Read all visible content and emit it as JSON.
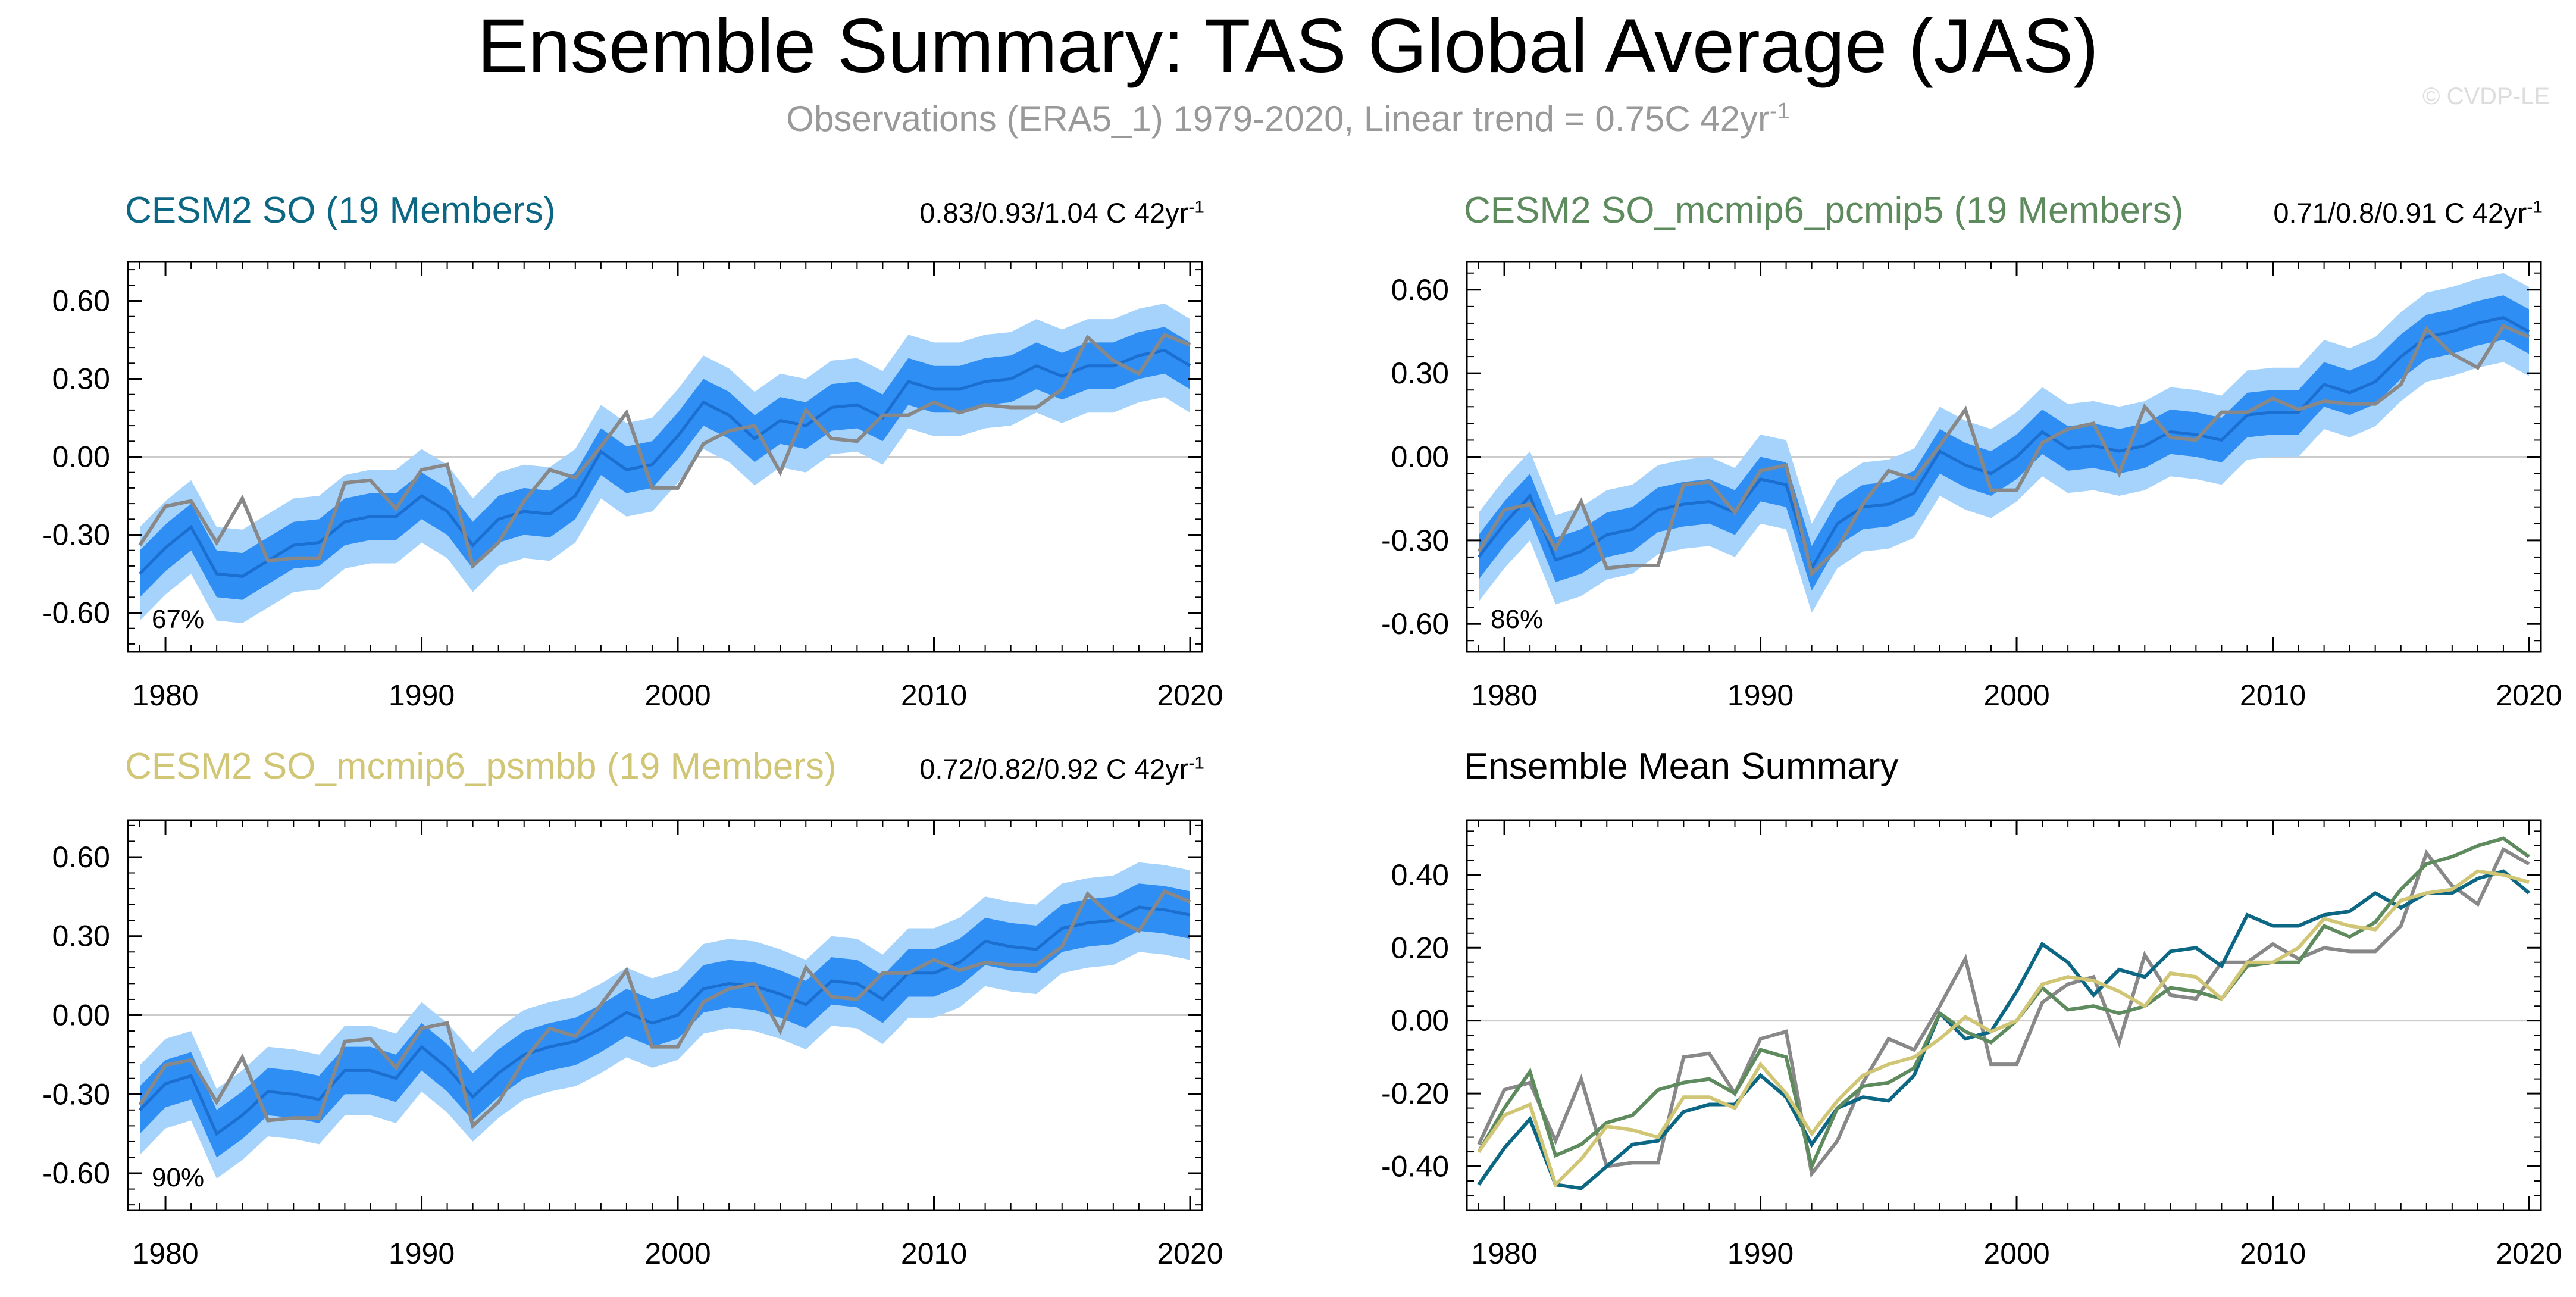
{
  "figure": {
    "title": "Ensemble Summary: TAS Global Average (JAS)",
    "subtitle_main": "Observations (ERA5_1) 1979-2020, Linear trend = 0.75C 42yr",
    "subtitle_sup": "-1",
    "watermark": "© CVDP-LE",
    "colors": {
      "outer_band": "#a6d3fb",
      "inner_band": "#2f8ef4",
      "mean_line": "#1b6fd1",
      "obs_line": "#888888",
      "zero_line": "#cccccc",
      "so": "#0b6783",
      "pcmip5": "#5e8b5e",
      "psmbb": "#d0c675"
    }
  },
  "panels": [
    {
      "title": "CESM2 SO (19 Members)",
      "trend": "0.83/0.93/1.04 C 42yr",
      "trend_sup": "-1",
      "percent": "67%",
      "title_color": "#0b6783"
    },
    {
      "title": "CESM2 SO_mcmip6_pcmip5 (19 Members)",
      "trend": "0.71/0.8/0.91 C 42yr",
      "trend_sup": "-1",
      "percent": "86%",
      "title_color": "#5e8b5e"
    },
    {
      "title": "CESM2 SO_mcmip6_psmbb (19 Members)",
      "trend": "0.72/0.82/0.92 C 42yr",
      "trend_sup": "-1",
      "percent": "90%",
      "title_color": "#d0c675"
    },
    {
      "title": "Ensemble Mean Summary",
      "title_color": "#000000"
    }
  ],
  "chart_data": [
    {
      "type": "area",
      "title": "CESM2 SO (19 Members)",
      "x": [
        1979,
        1980,
        1981,
        1982,
        1983,
        1984,
        1985,
        1986,
        1987,
        1988,
        1989,
        1990,
        1991,
        1992,
        1993,
        1994,
        1995,
        1996,
        1997,
        1998,
        1999,
        2000,
        2001,
        2002,
        2003,
        2004,
        2005,
        2006,
        2007,
        2008,
        2009,
        2010,
        2011,
        2012,
        2013,
        2014,
        2015,
        2016,
        2017,
        2018,
        2019,
        2020
      ],
      "xticks": [
        "1980",
        "1990",
        "2000",
        "2010",
        "2020"
      ],
      "ylim": [
        -0.75,
        0.75
      ],
      "yticks": [
        "0.60",
        "0.30",
        "0.00",
        "-0.30",
        "-0.60"
      ],
      "series": [
        {
          "name": "obs",
          "values": [
            -0.34,
            -0.19,
            -0.17,
            -0.33,
            -0.16,
            -0.4,
            -0.39,
            -0.39,
            -0.1,
            -0.09,
            -0.2,
            -0.05,
            -0.03,
            -0.42,
            -0.33,
            -0.17,
            -0.05,
            -0.08,
            0.04,
            0.17,
            -0.12,
            -0.12,
            0.05,
            0.1,
            0.12,
            -0.06,
            0.18,
            0.07,
            0.06,
            0.16,
            0.16,
            0.21,
            0.17,
            0.2,
            0.19,
            0.19,
            0.26,
            0.46,
            0.37,
            0.32,
            0.47,
            0.43
          ]
        },
        {
          "name": "ensemble_mean",
          "values": [
            -0.45,
            -0.35,
            -0.27,
            -0.45,
            -0.46,
            -0.4,
            -0.34,
            -0.33,
            -0.25,
            -0.23,
            -0.23,
            -0.15,
            -0.21,
            -0.34,
            -0.24,
            -0.21,
            -0.22,
            -0.15,
            0.02,
            -0.05,
            -0.03,
            0.08,
            0.21,
            0.16,
            0.07,
            0.14,
            0.12,
            0.19,
            0.2,
            0.15,
            0.29,
            0.26,
            0.26,
            0.29,
            0.3,
            0.35,
            0.31,
            0.35,
            0.35,
            0.39,
            0.41,
            0.35
          ]
        },
        {
          "name": "spread_inner",
          "values": [
            0.09,
            0.09,
            0.09,
            0.09,
            0.09,
            0.09,
            0.09,
            0.09,
            0.09,
            0.09,
            0.09,
            0.09,
            0.09,
            0.09,
            0.09,
            0.09,
            0.09,
            0.09,
            0.09,
            0.09,
            0.09,
            0.09,
            0.09,
            0.09,
            0.09,
            0.09,
            0.09,
            0.09,
            0.09,
            0.09,
            0.09,
            0.09,
            0.09,
            0.09,
            0.09,
            0.09,
            0.09,
            0.09,
            0.09,
            0.09,
            0.09,
            0.09
          ]
        },
        {
          "name": "spread_outer",
          "values": [
            0.18,
            0.18,
            0.18,
            0.18,
            0.18,
            0.18,
            0.18,
            0.18,
            0.18,
            0.18,
            0.18,
            0.18,
            0.18,
            0.18,
            0.18,
            0.18,
            0.18,
            0.18,
            0.18,
            0.18,
            0.18,
            0.18,
            0.18,
            0.18,
            0.18,
            0.18,
            0.18,
            0.18,
            0.18,
            0.18,
            0.18,
            0.18,
            0.18,
            0.18,
            0.18,
            0.18,
            0.18,
            0.18,
            0.18,
            0.18,
            0.18,
            0.18
          ]
        }
      ]
    },
    {
      "type": "area",
      "title": "CESM2 SO_mcmip6_pcmip5 (19 Members)",
      "x": [
        1979,
        1980,
        1981,
        1982,
        1983,
        1984,
        1985,
        1986,
        1987,
        1988,
        1989,
        1990,
        1991,
        1992,
        1993,
        1994,
        1995,
        1996,
        1997,
        1998,
        1999,
        2000,
        2001,
        2002,
        2003,
        2004,
        2005,
        2006,
        2007,
        2008,
        2009,
        2010,
        2011,
        2012,
        2013,
        2014,
        2015,
        2016,
        2017,
        2018,
        2019,
        2020
      ],
      "xticks": [
        "1980",
        "1990",
        "2000",
        "2010",
        "2020"
      ],
      "ylim": [
        -0.7,
        0.7
      ],
      "yticks": [
        "0.60",
        "0.30",
        "0.00",
        "-0.30",
        "-0.60"
      ],
      "series": [
        {
          "name": "obs",
          "values": [
            -0.34,
            -0.19,
            -0.17,
            -0.33,
            -0.16,
            -0.4,
            -0.39,
            -0.39,
            -0.1,
            -0.09,
            -0.2,
            -0.05,
            -0.03,
            -0.42,
            -0.33,
            -0.17,
            -0.05,
            -0.08,
            0.04,
            0.17,
            -0.12,
            -0.12,
            0.05,
            0.1,
            0.12,
            -0.06,
            0.18,
            0.07,
            0.06,
            0.16,
            0.16,
            0.21,
            0.17,
            0.2,
            0.19,
            0.19,
            0.26,
            0.46,
            0.37,
            0.32,
            0.47,
            0.43
          ]
        },
        {
          "name": "ensemble_mean",
          "values": [
            -0.36,
            -0.24,
            -0.14,
            -0.37,
            -0.34,
            -0.28,
            -0.26,
            -0.19,
            -0.17,
            -0.16,
            -0.2,
            -0.08,
            -0.1,
            -0.4,
            -0.24,
            -0.18,
            -0.17,
            -0.13,
            0.02,
            -0.03,
            -0.06,
            0.0,
            0.09,
            0.03,
            0.04,
            0.02,
            0.04,
            0.09,
            0.08,
            0.06,
            0.15,
            0.16,
            0.16,
            0.26,
            0.23,
            0.27,
            0.36,
            0.43,
            0.45,
            0.48,
            0.5,
            0.45
          ]
        },
        {
          "name": "spread_inner",
          "values": [
            0.08,
            0.08,
            0.08,
            0.08,
            0.08,
            0.08,
            0.08,
            0.08,
            0.08,
            0.08,
            0.08,
            0.08,
            0.08,
            0.08,
            0.08,
            0.08,
            0.08,
            0.08,
            0.08,
            0.08,
            0.08,
            0.08,
            0.08,
            0.08,
            0.08,
            0.08,
            0.08,
            0.08,
            0.08,
            0.08,
            0.08,
            0.08,
            0.08,
            0.08,
            0.08,
            0.08,
            0.08,
            0.08,
            0.08,
            0.08,
            0.08,
            0.08
          ]
        },
        {
          "name": "spread_outer",
          "values": [
            0.16,
            0.16,
            0.16,
            0.16,
            0.16,
            0.16,
            0.16,
            0.16,
            0.16,
            0.16,
            0.16,
            0.16,
            0.16,
            0.16,
            0.16,
            0.16,
            0.16,
            0.16,
            0.16,
            0.16,
            0.16,
            0.16,
            0.16,
            0.16,
            0.16,
            0.16,
            0.16,
            0.16,
            0.16,
            0.16,
            0.16,
            0.16,
            0.16,
            0.16,
            0.16,
            0.16,
            0.16,
            0.16,
            0.16,
            0.16,
            0.16,
            0.16
          ]
        }
      ]
    },
    {
      "type": "area",
      "title": "CESM2 SO_mcmip6_psmbb (19 Members)",
      "x": [
        1979,
        1980,
        1981,
        1982,
        1983,
        1984,
        1985,
        1986,
        1987,
        1988,
        1989,
        1990,
        1991,
        1992,
        1993,
        1994,
        1995,
        1996,
        1997,
        1998,
        1999,
        2000,
        2001,
        2002,
        2003,
        2004,
        2005,
        2006,
        2007,
        2008,
        2009,
        2010,
        2011,
        2012,
        2013,
        2014,
        2015,
        2016,
        2017,
        2018,
        2019,
        2020
      ],
      "xticks": [
        "1980",
        "1990",
        "2000",
        "2010",
        "2020"
      ],
      "ylim": [
        -0.74,
        0.74
      ],
      "yticks": [
        "0.60",
        "0.30",
        "0.00",
        "-0.30",
        "-0.60"
      ],
      "series": [
        {
          "name": "obs",
          "values": [
            -0.34,
            -0.19,
            -0.17,
            -0.33,
            -0.16,
            -0.4,
            -0.39,
            -0.39,
            -0.1,
            -0.09,
            -0.2,
            -0.05,
            -0.03,
            -0.42,
            -0.33,
            -0.17,
            -0.05,
            -0.08,
            0.04,
            0.17,
            -0.12,
            -0.12,
            0.05,
            0.1,
            0.12,
            -0.06,
            0.18,
            0.07,
            0.06,
            0.16,
            0.16,
            0.21,
            0.17,
            0.2,
            0.19,
            0.19,
            0.26,
            0.46,
            0.37,
            0.32,
            0.47,
            0.43
          ]
        },
        {
          "name": "ensemble_mean",
          "values": [
            -0.36,
            -0.26,
            -0.23,
            -0.45,
            -0.38,
            -0.29,
            -0.3,
            -0.32,
            -0.21,
            -0.21,
            -0.24,
            -0.12,
            -0.2,
            -0.31,
            -0.22,
            -0.15,
            -0.12,
            -0.1,
            -0.05,
            0.01,
            -0.03,
            0.0,
            0.1,
            0.12,
            0.11,
            0.08,
            0.04,
            0.13,
            0.12,
            0.06,
            0.16,
            0.16,
            0.2,
            0.28,
            0.26,
            0.25,
            0.33,
            0.35,
            0.36,
            0.41,
            0.4,
            0.38
          ]
        },
        {
          "name": "spread_inner",
          "values": [
            0.09,
            0.09,
            0.09,
            0.09,
            0.09,
            0.09,
            0.09,
            0.09,
            0.09,
            0.09,
            0.09,
            0.09,
            0.09,
            0.09,
            0.09,
            0.09,
            0.09,
            0.09,
            0.09,
            0.09,
            0.09,
            0.09,
            0.09,
            0.09,
            0.09,
            0.09,
            0.09,
            0.09,
            0.09,
            0.09,
            0.09,
            0.09,
            0.09,
            0.09,
            0.09,
            0.09,
            0.09,
            0.09,
            0.09,
            0.09,
            0.09,
            0.09
          ]
        },
        {
          "name": "spread_outer",
          "values": [
            0.17,
            0.17,
            0.17,
            0.17,
            0.17,
            0.17,
            0.17,
            0.17,
            0.17,
            0.17,
            0.17,
            0.17,
            0.17,
            0.17,
            0.17,
            0.17,
            0.17,
            0.17,
            0.17,
            0.17,
            0.17,
            0.17,
            0.17,
            0.17,
            0.17,
            0.17,
            0.17,
            0.17,
            0.17,
            0.17,
            0.17,
            0.17,
            0.17,
            0.17,
            0.17,
            0.17,
            0.17,
            0.17,
            0.17,
            0.17,
            0.17,
            0.17
          ]
        }
      ]
    },
    {
      "type": "line",
      "title": "Ensemble Mean Summary",
      "x": [
        1979,
        1980,
        1981,
        1982,
        1983,
        1984,
        1985,
        1986,
        1987,
        1988,
        1989,
        1990,
        1991,
        1992,
        1993,
        1994,
        1995,
        1996,
        1997,
        1998,
        1999,
        2000,
        2001,
        2002,
        2003,
        2004,
        2005,
        2006,
        2007,
        2008,
        2009,
        2010,
        2011,
        2012,
        2013,
        2014,
        2015,
        2016,
        2017,
        2018,
        2019,
        2020
      ],
      "xticks": [
        "1980",
        "1990",
        "2000",
        "2010",
        "2020"
      ],
      "ylim": [
        -0.52,
        0.55
      ],
      "yticks": [
        "0.40",
        "0.20",
        "0.00",
        "-0.20",
        "-0.40"
      ],
      "series": [
        {
          "name": "obs",
          "color": "#888888",
          "values": [
            -0.34,
            -0.19,
            -0.17,
            -0.33,
            -0.16,
            -0.4,
            -0.39,
            -0.39,
            -0.1,
            -0.09,
            -0.2,
            -0.05,
            -0.03,
            -0.42,
            -0.33,
            -0.17,
            -0.05,
            -0.08,
            0.04,
            0.17,
            -0.12,
            -0.12,
            0.05,
            0.1,
            0.12,
            -0.06,
            0.18,
            0.07,
            0.06,
            0.16,
            0.16,
            0.21,
            0.17,
            0.2,
            0.19,
            0.19,
            0.26,
            0.46,
            0.37,
            0.32,
            0.47,
            0.43
          ]
        },
        {
          "name": "CESM2 SO",
          "color": "#0b6783",
          "values": [
            -0.45,
            -0.35,
            -0.27,
            -0.45,
            -0.46,
            -0.4,
            -0.34,
            -0.33,
            -0.25,
            -0.23,
            -0.23,
            -0.15,
            -0.21,
            -0.34,
            -0.24,
            -0.21,
            -0.22,
            -0.15,
            0.02,
            -0.05,
            -0.03,
            0.08,
            0.21,
            0.16,
            0.07,
            0.14,
            0.12,
            0.19,
            0.2,
            0.15,
            0.29,
            0.26,
            0.26,
            0.29,
            0.3,
            0.35,
            0.31,
            0.35,
            0.35,
            0.39,
            0.41,
            0.35
          ]
        },
        {
          "name": "CESM2 SO_mcmip6_pcmip5",
          "color": "#5e8b5e",
          "values": [
            -0.36,
            -0.24,
            -0.14,
            -0.37,
            -0.34,
            -0.28,
            -0.26,
            -0.19,
            -0.17,
            -0.16,
            -0.2,
            -0.08,
            -0.1,
            -0.4,
            -0.24,
            -0.18,
            -0.17,
            -0.13,
            0.02,
            -0.03,
            -0.06,
            0.0,
            0.09,
            0.03,
            0.04,
            0.02,
            0.04,
            0.09,
            0.08,
            0.06,
            0.15,
            0.16,
            0.16,
            0.26,
            0.23,
            0.27,
            0.36,
            0.43,
            0.45,
            0.48,
            0.5,
            0.45
          ]
        },
        {
          "name": "CESM2 SO_mcmip6_psmbb",
          "color": "#d0c675",
          "values": [
            -0.36,
            -0.26,
            -0.23,
            -0.45,
            -0.38,
            -0.29,
            -0.3,
            -0.32,
            -0.21,
            -0.21,
            -0.24,
            -0.12,
            -0.2,
            -0.31,
            -0.22,
            -0.15,
            -0.12,
            -0.1,
            -0.05,
            0.01,
            -0.03,
            0.0,
            0.1,
            0.12,
            0.11,
            0.08,
            0.04,
            0.13,
            0.12,
            0.06,
            0.16,
            0.16,
            0.2,
            0.28,
            0.26,
            0.25,
            0.33,
            0.35,
            0.36,
            0.41,
            0.4,
            0.38
          ]
        }
      ]
    }
  ]
}
